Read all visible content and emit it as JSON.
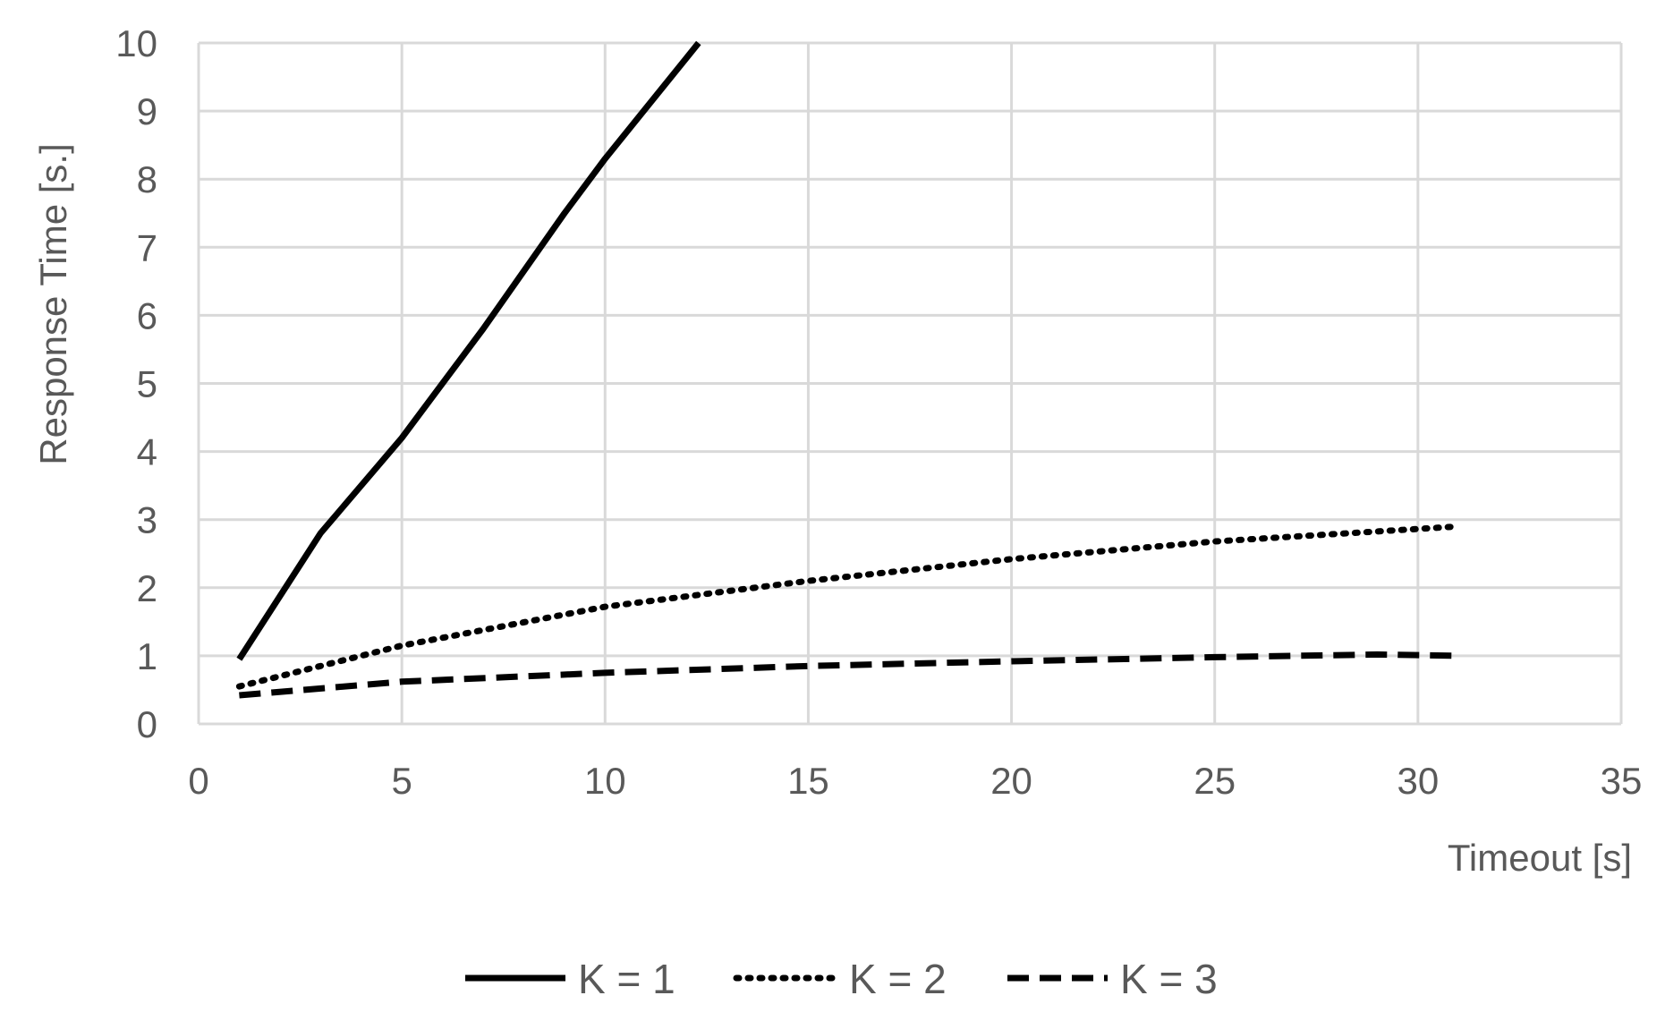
{
  "chart_data": {
    "type": "line",
    "xlabel": "Timeout [s]",
    "ylabel": "Response Time [s.]",
    "xlim": [
      0,
      35
    ],
    "ylim": [
      0,
      10
    ],
    "x_ticks": [
      0,
      5,
      10,
      15,
      20,
      25,
      30,
      35
    ],
    "y_ticks": [
      0,
      1,
      2,
      3,
      4,
      5,
      6,
      7,
      8,
      9,
      10
    ],
    "grid": true,
    "legend_position": "bottom",
    "series": [
      {
        "name": "K = 1",
        "style": "solid",
        "color": "#000000",
        "points": [
          [
            1,
            0.95
          ],
          [
            3,
            2.8
          ],
          [
            5,
            4.2
          ],
          [
            7,
            5.8
          ],
          [
            9,
            7.5
          ],
          [
            10,
            8.3
          ],
          [
            12.3,
            10
          ]
        ]
      },
      {
        "name": "K = 2",
        "style": "dotted",
        "color": "#000000",
        "points": [
          [
            1,
            0.55
          ],
          [
            5,
            1.15
          ],
          [
            10,
            1.72
          ],
          [
            15,
            2.1
          ],
          [
            20,
            2.42
          ],
          [
            25,
            2.68
          ],
          [
            31,
            2.9
          ]
        ]
      },
      {
        "name": "K = 3",
        "style": "dashed",
        "color": "#000000",
        "points": [
          [
            1,
            0.42
          ],
          [
            5,
            0.62
          ],
          [
            10,
            0.75
          ],
          [
            15,
            0.85
          ],
          [
            20,
            0.92
          ],
          [
            25,
            0.98
          ],
          [
            29,
            1.02
          ],
          [
            31,
            1.0
          ]
        ]
      }
    ]
  },
  "colors": {
    "grid": "#d9d9d9",
    "axis_text": "#595959",
    "series": "#000000"
  }
}
